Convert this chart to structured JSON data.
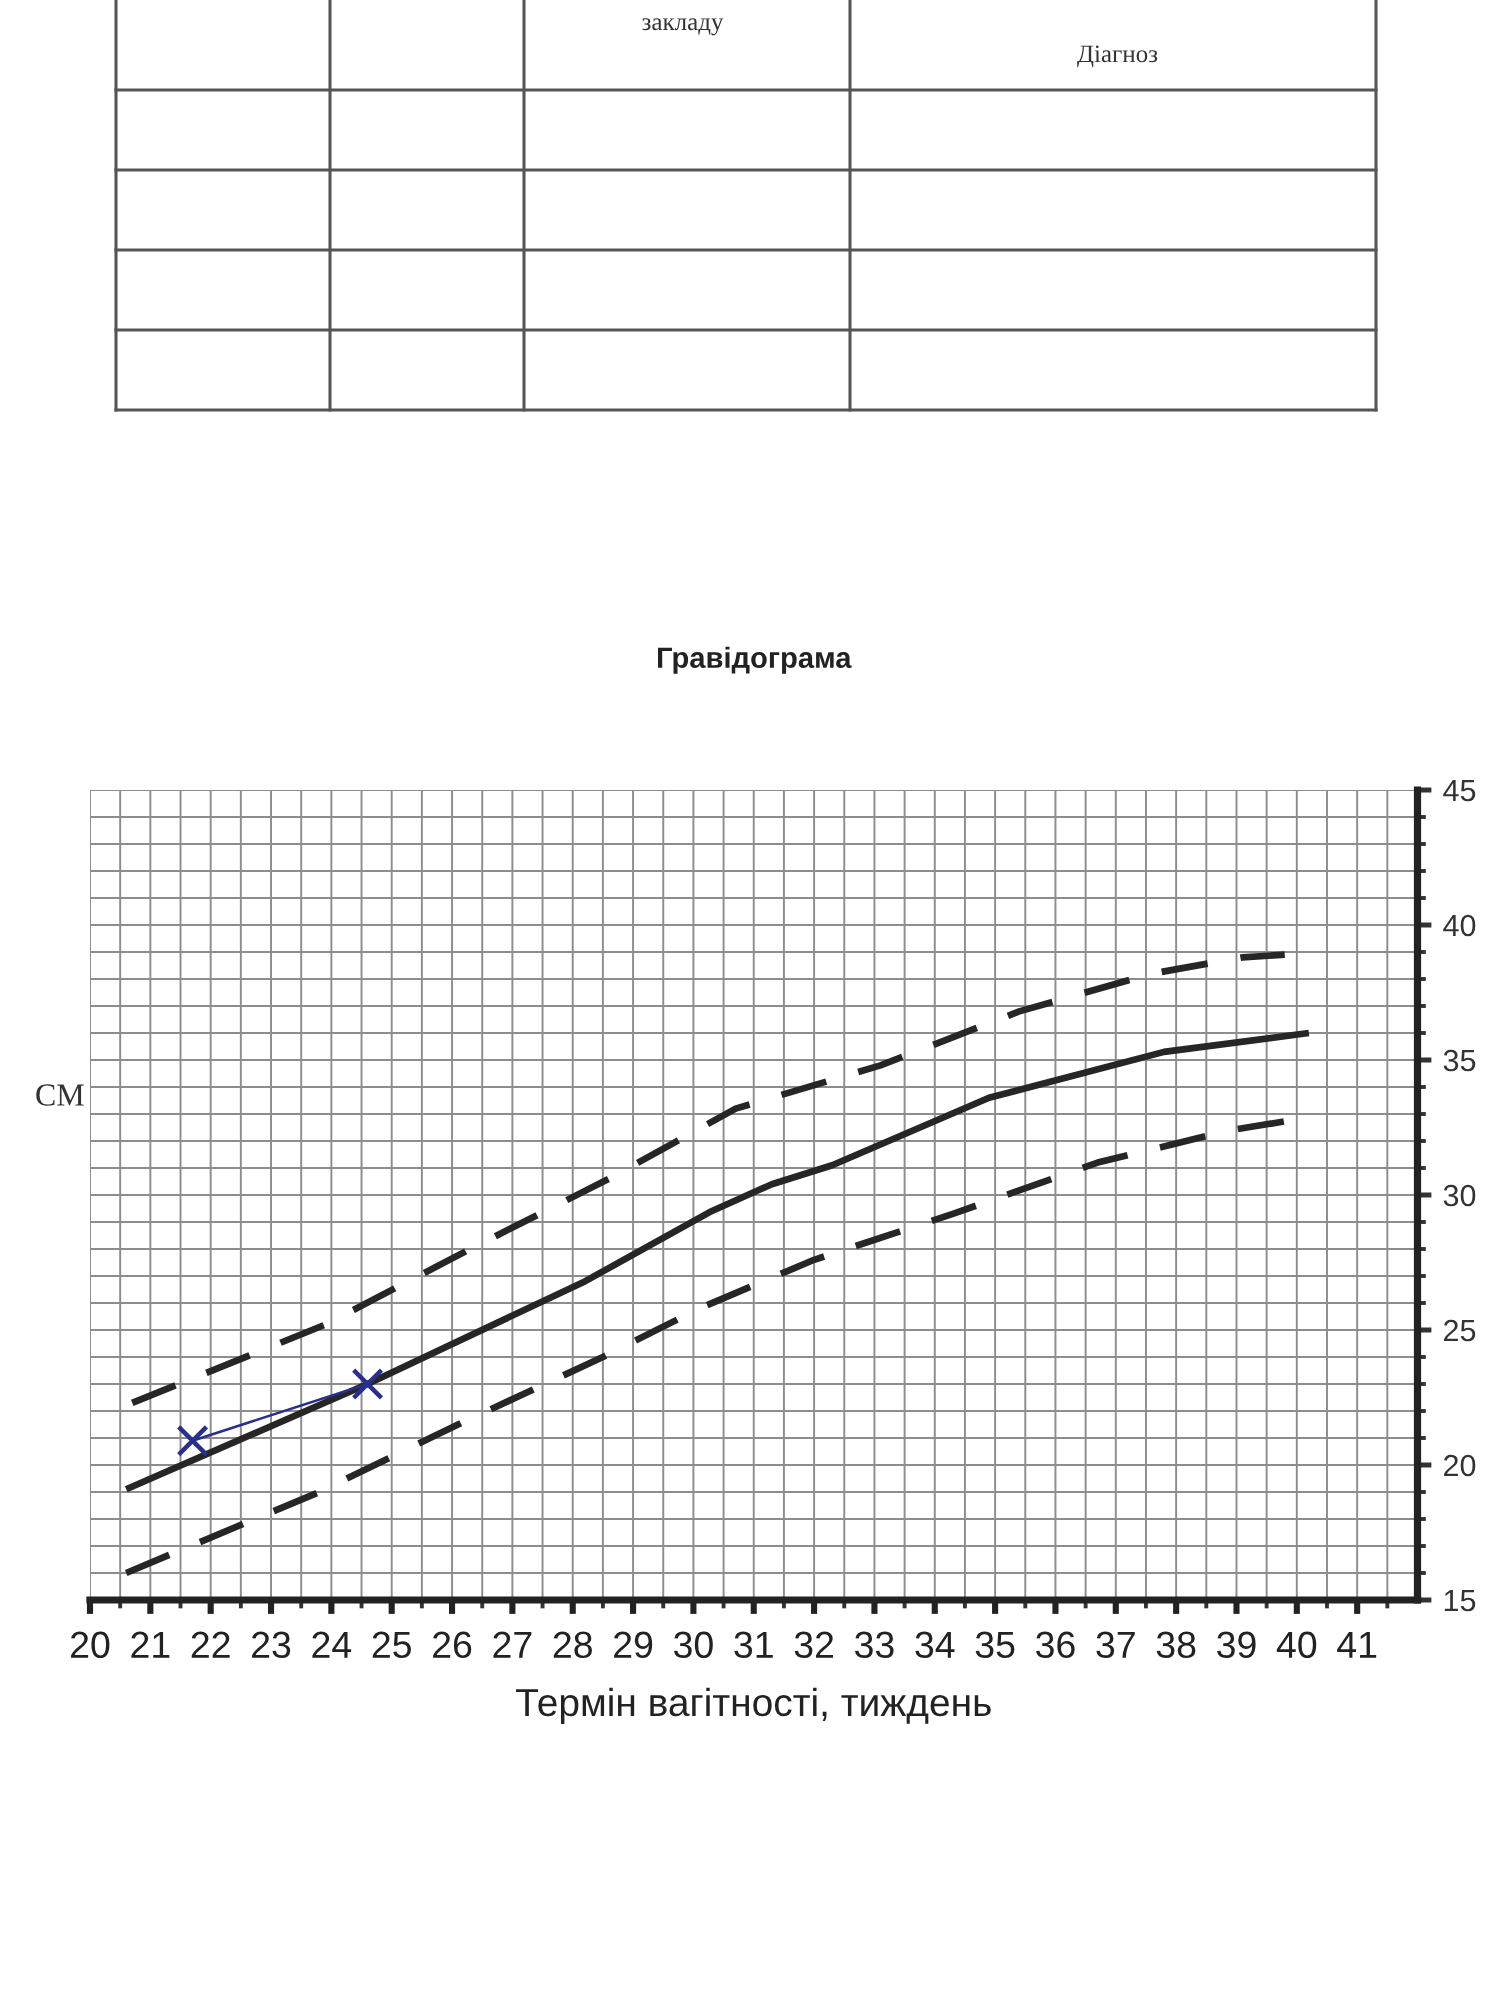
{
  "chart_data": {
    "type": "line",
    "title": "Гравідограма",
    "xlabel": "Термін вагітності, тиждень",
    "ylabel": "СМ",
    "annotations": [
      "закладу",
      "Діагноз"
    ],
    "xlim": [
      20,
      42
    ],
    "xticks": [
      20,
      {
        "value": 20.5,
        "label": null
      },
      21,
      {
        "value": 21.5,
        "label": null
      },
      22,
      {
        "value": 22.5,
        "label": null
      },
      23,
      {
        "value": 23.5,
        "label": null
      },
      24,
      {
        "value": 24.5,
        "label": null
      },
      25,
      {
        "value": 25.5,
        "label": null
      },
      26,
      {
        "value": 26.5,
        "label": null
      },
      27,
      {
        "value": 27.5,
        "label": null
      },
      28,
      {
        "value": 28.5,
        "label": null
      },
      29,
      {
        "value": 29.5,
        "label": null
      },
      30,
      {
        "value": 30.5,
        "label": null
      },
      31,
      {
        "value": 31.5,
        "label": null
      },
      32,
      {
        "value": 32.5,
        "label": null
      },
      33,
      {
        "value": 33.5,
        "label": null
      },
      34,
      {
        "value": 34.5,
        "label": null
      },
      35,
      {
        "value": 35.5,
        "label": null
      },
      36,
      {
        "value": 36.5,
        "label": null
      },
      37,
      {
        "value": 37.5,
        "label": null
      },
      38,
      {
        "value": 38.5,
        "label": null
      },
      39,
      {
        "value": 39.5,
        "label": null
      },
      40,
      {
        "value": 40.5,
        "label": null
      },
      41,
      {
        "value": 41.5,
        "label": null
      }
    ],
    "ylim": [
      15,
      45
    ],
    "yticks": [
      15,
      {
        "value": 16,
        "label": null
      },
      {
        "value": 17,
        "label": null
      },
      {
        "value": 18,
        "label": null
      },
      {
        "value": 19,
        "label": null
      },
      20,
      {
        "value": 21,
        "label": null
      },
      {
        "value": 22,
        "label": null
      },
      {
        "value": 23,
        "label": null
      },
      {
        "value": 24,
        "label": null
      },
      25,
      {
        "value": 26,
        "label": null
      },
      {
        "value": 27,
        "label": null
      },
      {
        "value": 28,
        "label": null
      },
      {
        "value": 29,
        "label": null
      },
      30,
      {
        "value": 31,
        "label": null
      },
      {
        "value": 32,
        "label": null
      },
      {
        "value": 33,
        "label": null
      },
      {
        "value": 34,
        "label": null
      },
      35,
      {
        "value": 36,
        "label": null
      },
      {
        "value": 37,
        "label": null
      },
      {
        "value": 38,
        "label": null
      },
      {
        "value": 39,
        "label": null
      },
      40,
      {
        "value": 41,
        "label": null
      },
      {
        "value": 42,
        "label": null
      },
      {
        "value": 43,
        "label": null
      },
      {
        "value": 44,
        "label": null
      },
      45
    ],
    "grid": true,
    "series": [
      {
        "x": [
          20.7,
          23.9,
          26.3,
          28.6,
          30.7,
          33.1,
          35.4,
          37.6,
          39.1,
          39.8
        ],
        "values": [
          22.3,
          25.2,
          28.0,
          30.6,
          33.2,
          34.8,
          36.8,
          38.2,
          38.8,
          38.9
        ],
        "color": "#262626",
        "line_style": "dashed"
      },
      {
        "x": [
          20.6,
          24.6,
          28.2,
          30.3,
          31.3,
          32.3,
          34.9,
          37.8,
          40.2
        ],
        "values": [
          19.1,
          23.0,
          26.8,
          29.4,
          30.4,
          31.1,
          33.6,
          35.3,
          36.0
        ],
        "color": "#262626",
        "line_style": "solid"
      },
      {
        "x": [
          20.6,
          23.8,
          26.1,
          28.5,
          30.1,
          32.0,
          34.3,
          36.7,
          38.9,
          40.0
        ],
        "values": [
          16.0,
          19.0,
          21.5,
          24.0,
          25.8,
          27.6,
          29.3,
          31.2,
          32.4,
          32.8
        ],
        "color": "#262626",
        "line_style": "dashed"
      },
      {
        "x": [
          21.7,
          24.6
        ],
        "values": [
          20.9,
          23.0
        ],
        "color": "#2a2f8c",
        "line_style": "solid",
        "marker": "cross"
      }
    ]
  }
}
